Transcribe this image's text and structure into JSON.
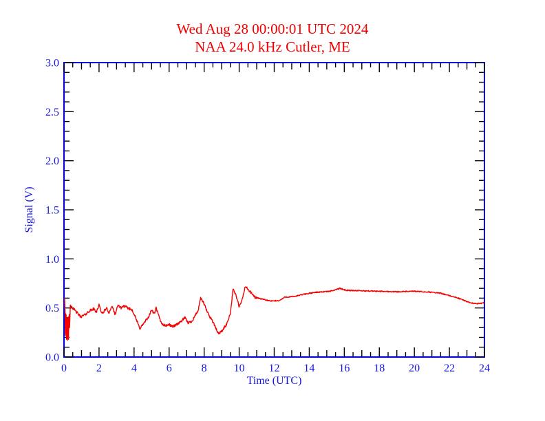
{
  "header": {
    "title_line1": "Wed Aug 28 00:00:01 UTC 2024",
    "title_line2": "NAA 24.0 kHz Cutler, ME",
    "title_color": "#f40000"
  },
  "chart_data": {
    "type": "line",
    "title": "Wed Aug 28 00:00:01 UTC 2024",
    "subtitle": "NAA 24.0 kHz Cutler, ME",
    "xlabel": "Time (UTC)",
    "ylabel": "Signal (V)",
    "xlim": [
      0,
      24
    ],
    "ylim": [
      0.0,
      3.0
    ],
    "grid": false,
    "legend": "none",
    "x_major_tick_values": [
      0,
      2,
      4,
      6,
      8,
      10,
      12,
      14,
      16,
      18,
      20,
      22,
      24
    ],
    "x_major_tick_labels": [
      "0",
      "2",
      "4",
      "6",
      "8",
      "10",
      "12",
      "14",
      "16",
      "18",
      "20",
      "22",
      "24"
    ],
    "x_minor_step": 0.5,
    "y_major_tick_values": [
      0.0,
      0.5,
      1.0,
      1.5,
      2.0,
      2.5,
      3.0
    ],
    "y_major_tick_labels": [
      "0.0",
      "0.5",
      "1.0",
      "1.5",
      "2.0",
      "2.5",
      "3.0"
    ],
    "y_minor_step": 0.1,
    "colors": {
      "frame": "#0000e0",
      "tick": "#000000",
      "tick_label": "#1515dd",
      "axis_label": "#1515dd",
      "line": "#f40000",
      "title": "#f40000",
      "background": "#ffffff"
    },
    "series": [
      {
        "name": "signal",
        "points": [
          [
            0.0,
            0.6
          ],
          [
            0.05,
            0.58
          ],
          [
            0.08,
            0.22
          ],
          [
            0.11,
            0.55
          ],
          [
            0.14,
            0.18
          ],
          [
            0.17,
            0.5
          ],
          [
            0.2,
            0.17
          ],
          [
            0.23,
            0.52
          ],
          [
            0.26,
            0.18
          ],
          [
            0.29,
            0.5
          ],
          [
            0.32,
            0.3
          ],
          [
            0.36,
            0.53
          ],
          [
            0.45,
            0.51
          ],
          [
            0.6,
            0.48
          ],
          [
            0.95,
            0.41
          ],
          [
            1.2,
            0.43
          ],
          [
            1.45,
            0.47
          ],
          [
            1.7,
            0.49
          ],
          [
            1.85,
            0.46
          ],
          [
            2.0,
            0.53
          ],
          [
            2.17,
            0.44
          ],
          [
            2.43,
            0.5
          ],
          [
            2.55,
            0.45
          ],
          [
            2.76,
            0.52
          ],
          [
            2.9,
            0.43
          ],
          [
            3.1,
            0.53
          ],
          [
            3.25,
            0.5
          ],
          [
            3.4,
            0.52
          ],
          [
            3.65,
            0.5
          ],
          [
            3.9,
            0.48
          ],
          [
            4.13,
            0.38
          ],
          [
            4.33,
            0.29
          ],
          [
            4.5,
            0.33
          ],
          [
            4.8,
            0.4
          ],
          [
            5.0,
            0.48
          ],
          [
            5.15,
            0.44
          ],
          [
            5.26,
            0.5
          ],
          [
            5.5,
            0.37
          ],
          [
            5.64,
            0.33
          ],
          [
            5.8,
            0.32
          ],
          [
            6.0,
            0.33
          ],
          [
            6.2,
            0.31
          ],
          [
            6.4,
            0.33
          ],
          [
            6.6,
            0.35
          ],
          [
            6.9,
            0.4
          ],
          [
            7.08,
            0.35
          ],
          [
            7.28,
            0.36
          ],
          [
            7.48,
            0.42
          ],
          [
            7.67,
            0.48
          ],
          [
            7.8,
            0.6
          ],
          [
            7.95,
            0.56
          ],
          [
            8.2,
            0.45
          ],
          [
            8.5,
            0.36
          ],
          [
            8.8,
            0.24
          ],
          [
            9.0,
            0.26
          ],
          [
            9.3,
            0.34
          ],
          [
            9.5,
            0.45
          ],
          [
            9.65,
            0.69
          ],
          [
            9.8,
            0.64
          ],
          [
            10.0,
            0.51
          ],
          [
            10.15,
            0.57
          ],
          [
            10.35,
            0.72
          ],
          [
            10.6,
            0.67
          ],
          [
            10.9,
            0.61
          ],
          [
            11.3,
            0.59
          ],
          [
            11.8,
            0.57
          ],
          [
            12.3,
            0.575
          ],
          [
            12.6,
            0.61
          ],
          [
            13.1,
            0.615
          ],
          [
            13.7,
            0.64
          ],
          [
            14.4,
            0.66
          ],
          [
            15.2,
            0.67
          ],
          [
            15.75,
            0.7
          ],
          [
            16.1,
            0.68
          ],
          [
            17.0,
            0.675
          ],
          [
            18.0,
            0.67
          ],
          [
            19.0,
            0.665
          ],
          [
            20.0,
            0.67
          ],
          [
            20.5,
            0.665
          ],
          [
            21.0,
            0.66
          ],
          [
            21.5,
            0.65
          ],
          [
            22.0,
            0.625
          ],
          [
            22.5,
            0.6
          ],
          [
            23.0,
            0.565
          ],
          [
            23.4,
            0.545
          ],
          [
            23.7,
            0.545
          ],
          [
            24.0,
            0.555
          ]
        ]
      }
    ],
    "noise_texture": {
      "amp_before_t11": 0.013,
      "amp_after_t11": 0.0055,
      "sample_step": 0.02
    }
  }
}
